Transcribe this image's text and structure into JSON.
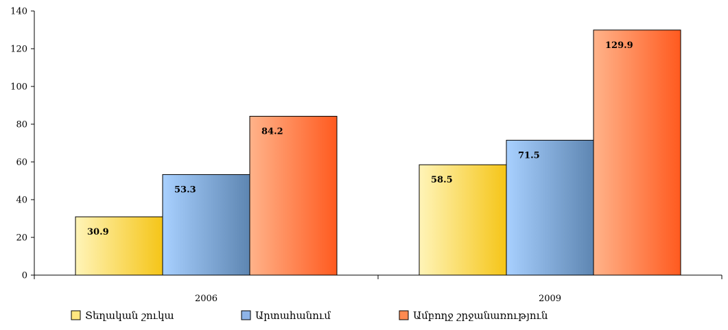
{
  "chart_data": {
    "type": "bar",
    "title": "",
    "xlabel": "",
    "ylabel": "",
    "categories": [
      "2006",
      "2009"
    ],
    "series": [
      {
        "name": "Տեղական շուկա",
        "values": [
          30.9,
          58.5
        ],
        "labels": [
          "30.9",
          "58.5"
        ],
        "gradient": [
          "#fff4b8",
          "#f5c518"
        ],
        "swatch": "#ffe680"
      },
      {
        "name": "Արտահանում",
        "values": [
          53.3,
          71.5
        ],
        "labels": [
          "53.3",
          "71.5"
        ],
        "gradient": [
          "#a8d0ff",
          "#5e86b2"
        ],
        "swatch": "#8eb4e8"
      },
      {
        "name": "Ամբողջ շրջանառություն",
        "values": [
          84.2,
          129.9
        ],
        "labels": [
          "84.2",
          "129.9"
        ],
        "gradient": [
          "#ffb38a",
          "#ff5a1f"
        ],
        "swatch": "#ff8a50"
      }
    ],
    "ylim": [
      0,
      140
    ],
    "yticks": [
      0,
      20,
      40,
      60,
      80,
      100,
      120,
      140
    ],
    "ytick_labels": [
      "0",
      "20",
      "40",
      "60",
      "80",
      "100",
      "120",
      "140"
    ],
    "grid": false,
    "legend": "bottom"
  }
}
